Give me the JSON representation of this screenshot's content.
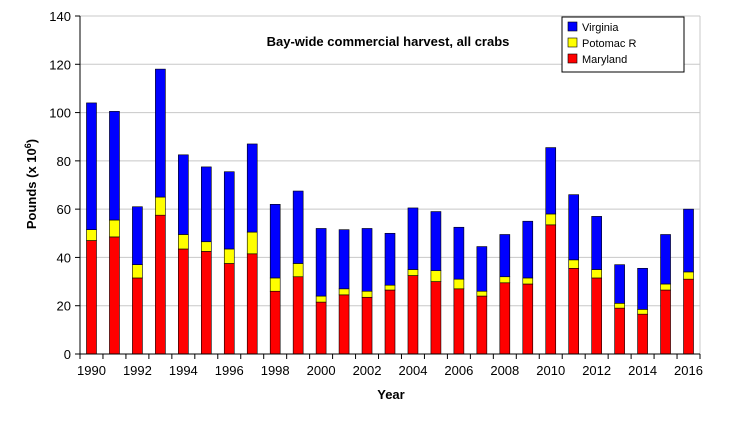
{
  "chart_data": {
    "type": "bar",
    "stacked": true,
    "title": "Bay-wide commercial harvest, all crabs",
    "xlabel": "Year",
    "ylabel_main": "Pounds (x 10",
    "ylabel_sup": "6",
    "ylabel_end": ")",
    "ylim": [
      0,
      140
    ],
    "yticks": [
      0,
      20,
      40,
      60,
      80,
      100,
      120,
      140
    ],
    "grid": true,
    "legend_position": "top-right",
    "categories": [
      "1990",
      "1991",
      "1992",
      "1993",
      "1994",
      "1995",
      "1996",
      "1997",
      "1998",
      "1999",
      "2000",
      "2001",
      "2002",
      "2003",
      "2004",
      "2005",
      "2006",
      "2007",
      "2008",
      "2009",
      "2010",
      "2011",
      "2012",
      "2013",
      "2014",
      "2015",
      "2016"
    ],
    "xtick_labels": [
      "1990",
      "1992",
      "1994",
      "1996",
      "1998",
      "2000",
      "2002",
      "2004",
      "2006",
      "2008",
      "2010",
      "2012",
      "2014",
      "2016"
    ],
    "series": [
      {
        "name": "Maryland",
        "color": "#ff0000",
        "values": [
          47,
          48.5,
          31.5,
          57.5,
          43.5,
          42.5,
          37.5,
          41.5,
          26,
          32,
          21.5,
          24.5,
          23.5,
          26.5,
          32.5,
          30,
          27,
          24,
          29.5,
          29,
          53.5,
          35.5,
          31.5,
          19,
          16.5,
          26.5,
          31
        ]
      },
      {
        "name": "Potomac R",
        "color": "#ffff00",
        "values": [
          4.5,
          7,
          5.5,
          7.5,
          6,
          4,
          6,
          9,
          5.5,
          5.5,
          2.5,
          2.5,
          2.5,
          2,
          2.5,
          4.5,
          4,
          2,
          2.5,
          2.5,
          4.5,
          3.5,
          3.5,
          2,
          2,
          2.5,
          3
        ]
      },
      {
        "name": "Virginia",
        "color": "#0000ff",
        "values": [
          52.5,
          45,
          24,
          53,
          33,
          31,
          32,
          36.5,
          30.5,
          30,
          28,
          24.5,
          26,
          21.5,
          25.5,
          24.5,
          21.5,
          18.5,
          17.5,
          23.5,
          27.5,
          27,
          22,
          16,
          17,
          20.5,
          26
        ]
      }
    ],
    "legend_order": [
      "Virginia",
      "Potomac R",
      "Maryland"
    ]
  }
}
